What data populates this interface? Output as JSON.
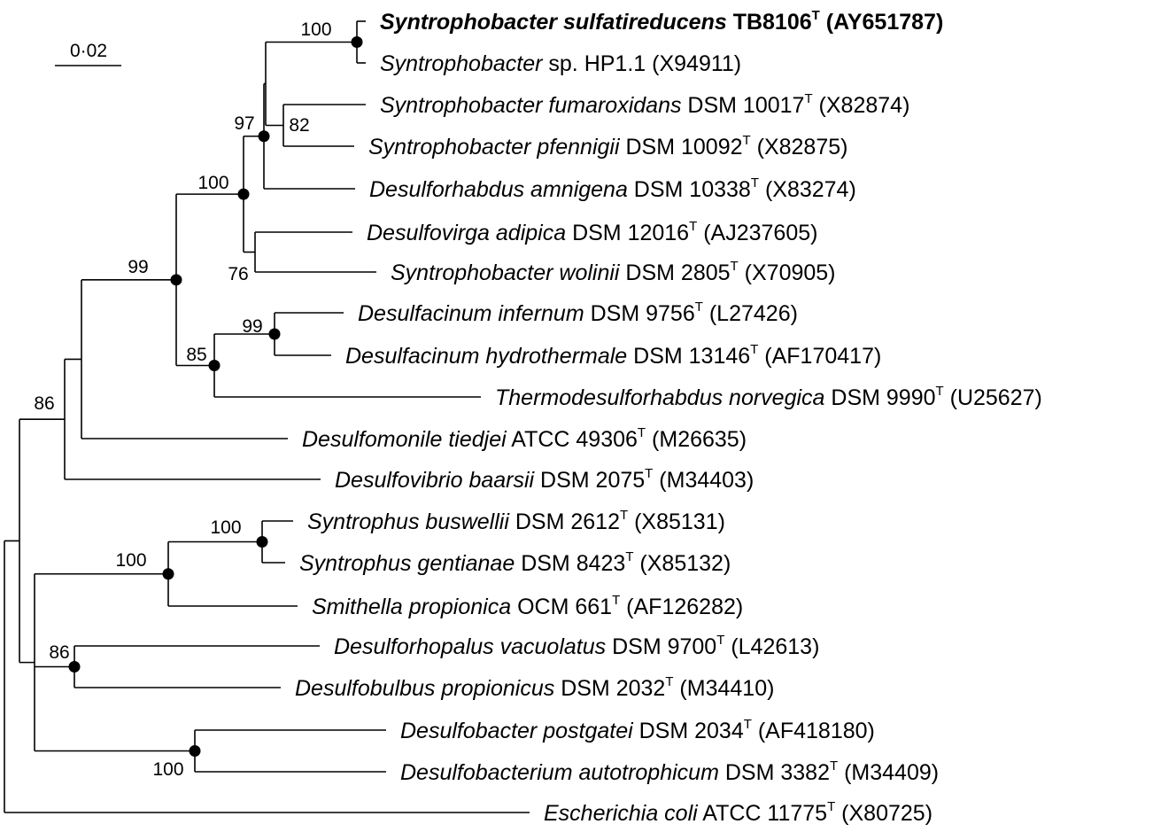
{
  "scale_bar": {
    "label": "0·02"
  },
  "taxa": [
    {
      "id": "t1",
      "genus_species": "Syntrophobacter sulfatireducens",
      "strain": "TB8106",
      "type_mark": "T",
      "accession": "(AY651787)",
      "bold": true
    },
    {
      "id": "t2",
      "genus_species": "Syntrophobacter",
      "strain": "sp. HP1.1",
      "type_mark": "",
      "accession": "(X94911)",
      "bold": false
    },
    {
      "id": "t3",
      "genus_species": "Syntrophobacter fumaroxidans",
      "strain": "DSM 10017",
      "type_mark": "T",
      "accession": "(X82874)",
      "bold": false
    },
    {
      "id": "t4",
      "genus_species": "Syntrophobacter pfennigii",
      "strain": "DSM 10092",
      "type_mark": "T",
      "accession": "(X82875)",
      "bold": false
    },
    {
      "id": "t5",
      "genus_species": "Desulforhabdus amnigena",
      "strain": "DSM 10338",
      "type_mark": "T",
      "accession": "(X83274)",
      "bold": false
    },
    {
      "id": "t6",
      "genus_species": "Desulfovirga adipica",
      "strain": "DSM 12016",
      "type_mark": "T",
      "accession": "(AJ237605)",
      "bold": false
    },
    {
      "id": "t7",
      "genus_species": "Syntrophobacter wolinii",
      "strain": "DSM 2805",
      "type_mark": "T",
      "accession": "(X70905)",
      "bold": false
    },
    {
      "id": "t8",
      "genus_species": "Desulfacinum infernum",
      "strain": "DSM 9756",
      "type_mark": "T",
      "accession": "(L27426)",
      "bold": false
    },
    {
      "id": "t9",
      "genus_species": "Desulfacinum hydrothermale",
      "strain": "DSM 13146",
      "type_mark": "T",
      "accession": "(AF170417)",
      "bold": false
    },
    {
      "id": "t10",
      "genus_species": "Thermodesulforhabdus norvegica",
      "strain": "DSM 9990",
      "type_mark": "T",
      "accession": "(U25627)",
      "bold": false
    },
    {
      "id": "t11",
      "genus_species": "Desulfomonile tiedjei",
      "strain": "ATCC 49306",
      "type_mark": "T",
      "accession": "(M26635)",
      "bold": false
    },
    {
      "id": "t12",
      "genus_species": "Desulfovibrio baarsii",
      "strain": "DSM 2075",
      "type_mark": "T",
      "accession": "(M34403)",
      "bold": false
    },
    {
      "id": "t13",
      "genus_species": "Syntrophus buswellii",
      "strain": "DSM 2612",
      "type_mark": "T",
      "accession": "(X85131)",
      "bold": false
    },
    {
      "id": "t14",
      "genus_species": "Syntrophus gentianae",
      "strain": "DSM 8423",
      "type_mark": "T",
      "accession": "(X85132)",
      "bold": false
    },
    {
      "id": "t15",
      "genus_species": "Smithella propionica",
      "strain": "OCM 661",
      "type_mark": "T",
      "accession": "(AF126282)",
      "bold": false
    },
    {
      "id": "t16",
      "genus_species": "Desulforhopalus vacuolatus",
      "strain": "DSM 9700",
      "type_mark": "T",
      "accession": "(L42613)",
      "bold": false
    },
    {
      "id": "t17",
      "genus_species": "Desulfobulbus propionicus",
      "strain": "DSM 2032",
      "type_mark": "T",
      "accession": "(M34410)",
      "bold": false
    },
    {
      "id": "t18",
      "genus_species": "Desulfobacter postgatei",
      "strain": "DSM 2034",
      "type_mark": "T",
      "accession": "(AF418180)",
      "bold": false
    },
    {
      "id": "t19",
      "genus_species": "Desulfobacterium autotrophicum",
      "strain": "DSM 3382",
      "type_mark": "T",
      "accession": "(M34409)",
      "bold": false
    },
    {
      "id": "t20",
      "genus_species": "Escherichia coli",
      "strain": "ATCC 11775",
      "type_mark": "T",
      "accession": "(X80725)",
      "bold": false
    }
  ],
  "bootstrap": [
    {
      "id": "n_t1t2",
      "value": "100"
    },
    {
      "id": "n_t3t4",
      "value": "82"
    },
    {
      "id": "n_synA",
      "value": "97"
    },
    {
      "id": "n_synB",
      "value": "100"
    },
    {
      "id": "n_t6t7",
      "value": "76"
    },
    {
      "id": "n_main",
      "value": "99"
    },
    {
      "id": "n_t8t9",
      "value": "99"
    },
    {
      "id": "n_desulfac",
      "value": "85"
    },
    {
      "id": "n_upper",
      "value": "86"
    },
    {
      "id": "n_t13t14",
      "value": "100"
    },
    {
      "id": "n_syntrophus",
      "value": "100"
    },
    {
      "id": "n_t16t17",
      "value": "86"
    },
    {
      "id": "n_t18t19",
      "value": "100"
    }
  ]
}
